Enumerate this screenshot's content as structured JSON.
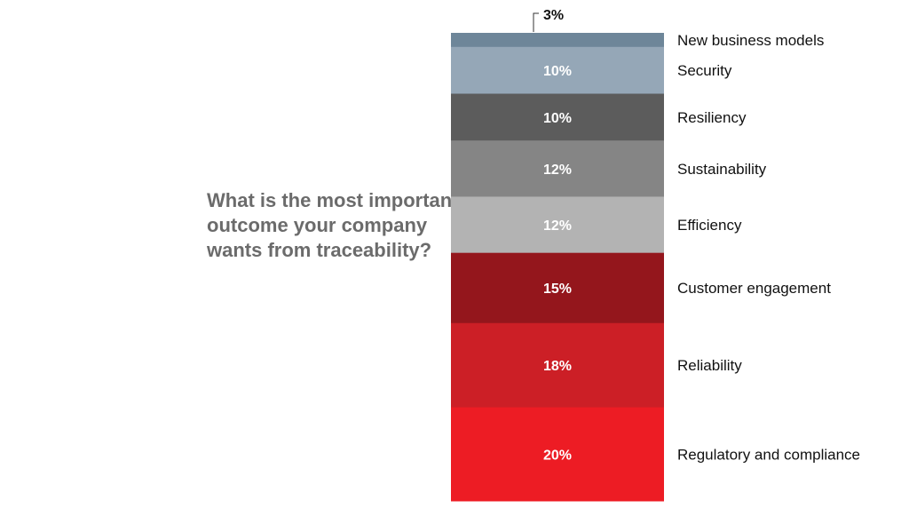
{
  "question": "What is the most important outcome your company wants from traceability?",
  "chart_data": {
    "type": "bar",
    "stacked": true,
    "categories": [
      "New business models",
      "Security",
      "Resiliency",
      "Sustainability",
      "Efficiency",
      "Customer engagement",
      "Reliability",
      "Regulatory and compliance"
    ],
    "values": [
      3,
      10,
      10,
      12,
      12,
      15,
      18,
      20
    ],
    "labels": [
      "3%",
      "10%",
      "10%",
      "12%",
      "12%",
      "15%",
      "18%",
      "20%"
    ],
    "colors": [
      "#6e8699",
      "#95a7b7",
      "#5c5c5c",
      "#858585",
      "#b3b3b3",
      "#94161c",
      "#cc1f26",
      "#ed1c24"
    ],
    "unit": "%"
  }
}
